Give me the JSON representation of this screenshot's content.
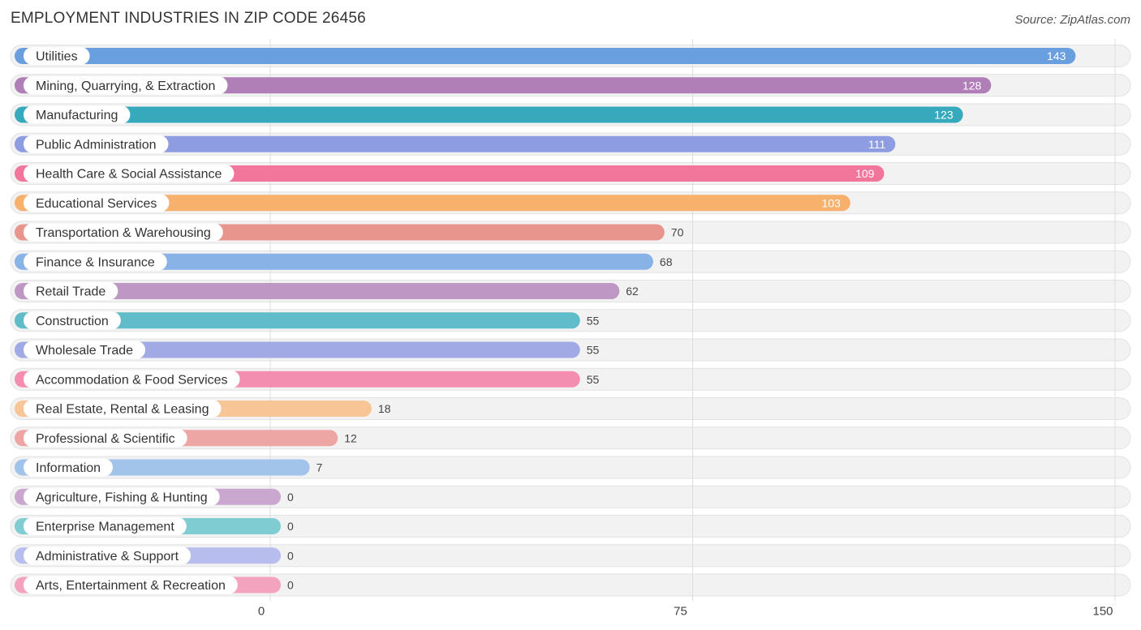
{
  "header": {
    "title": "EMPLOYMENT INDUSTRIES IN ZIP CODE 26456",
    "source": "Source: ZipAtlas.com"
  },
  "chart_data": {
    "type": "bar",
    "orientation": "horizontal",
    "title": "EMPLOYMENT INDUSTRIES IN ZIP CODE 26456",
    "xlim": [
      0,
      150
    ],
    "x_ticks": [
      0,
      75,
      150
    ],
    "grid": true,
    "categories": [
      "Utilities",
      "Mining, Quarrying, & Extraction",
      "Manufacturing",
      "Public Administration",
      "Health Care & Social Assistance",
      "Educational Services",
      "Transportation & Warehousing",
      "Finance & Insurance",
      "Retail Trade",
      "Construction",
      "Wholesale Trade",
      "Accommodation & Food Services",
      "Real Estate, Rental & Leasing",
      "Professional & Scientific",
      "Information",
      "Agriculture, Fishing & Hunting",
      "Enterprise Management",
      "Administrative & Support",
      "Arts, Entertainment & Recreation"
    ],
    "values": [
      143,
      128,
      123,
      111,
      109,
      103,
      70,
      68,
      62,
      55,
      55,
      55,
      18,
      12,
      7,
      0,
      0,
      0,
      0
    ],
    "colors": [
      "#6a9fdf",
      "#b07fb7",
      "#36a9bd",
      "#8e9de2",
      "#f2759c",
      "#f7b16d",
      "#e8958e",
      "#89b2e6",
      "#bf97c5",
      "#5fbcc8",
      "#a2aae6",
      "#f38eb1",
      "#f8c596",
      "#eea6a4",
      "#a2c3ea",
      "#c9a7cf",
      "#7fcdd2",
      "#b7bdec",
      "#f4a3bf"
    ]
  }
}
